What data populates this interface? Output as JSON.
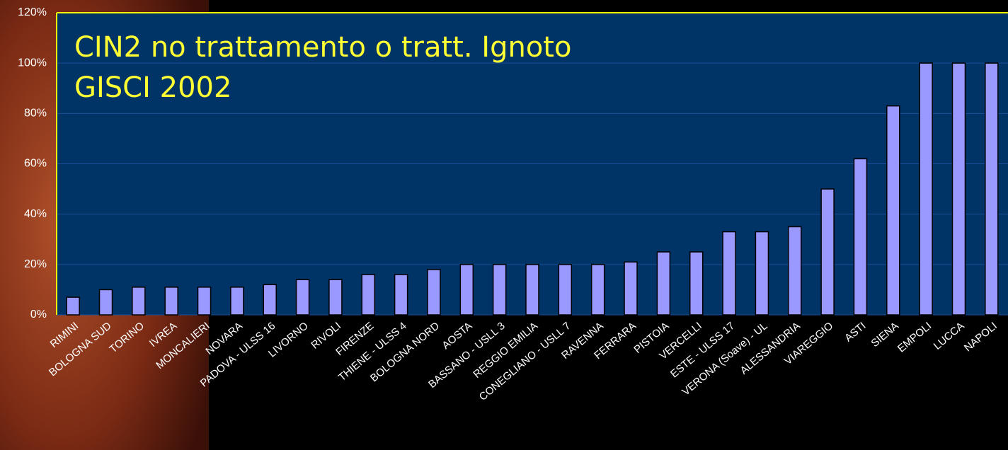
{
  "chart_data": {
    "type": "bar",
    "title": [
      "CIN2 no trattamento o tratt. Ignoto",
      "GISCI 2002"
    ],
    "categories": [
      "RIMINI",
      "BOLOGNA SUD",
      "TORINO",
      "IVREA",
      "MONCALIERI",
      "NOVARA",
      "PADOVA - ULSS 16",
      "LIVORNO",
      "RIVOLI",
      "FIRENZE",
      "THIENE - ULSS 4",
      "BOLOGNA NORD",
      "AOSTA",
      "BASSANO - USLL 3",
      "REGGIO EMILIA",
      "CONEGLIANO - USLL 7",
      "RAVENNA",
      "FERRARA",
      "PISTOIA",
      "VERCELLI",
      "ESTE - ULSS 17",
      "VERONA (Soave) - UL",
      "ALESSANDRIA",
      "VIAREGGIO",
      "ASTI",
      "SIENA",
      "EMPOLI",
      "LUCCA",
      "NAPOLI"
    ],
    "values": [
      7,
      10,
      11,
      11,
      11,
      11,
      12,
      14,
      14,
      16,
      16,
      18,
      20,
      20,
      20,
      20,
      20,
      21,
      25,
      25,
      33,
      33,
      35,
      50,
      62,
      83,
      100,
      100,
      100
    ],
    "color": "#9999ff",
    "ylim": [
      0,
      120
    ],
    "yticks": [
      {
        "value": 0,
        "label": "0%"
      },
      {
        "value": 20,
        "label": "20%"
      },
      {
        "value": 40,
        "label": "40%"
      },
      {
        "value": 60,
        "label": "60%"
      },
      {
        "value": 80,
        "label": "80%"
      },
      {
        "value": 100,
        "label": "100%"
      },
      {
        "value": 120,
        "label": "120%"
      }
    ],
    "grid": true
  }
}
